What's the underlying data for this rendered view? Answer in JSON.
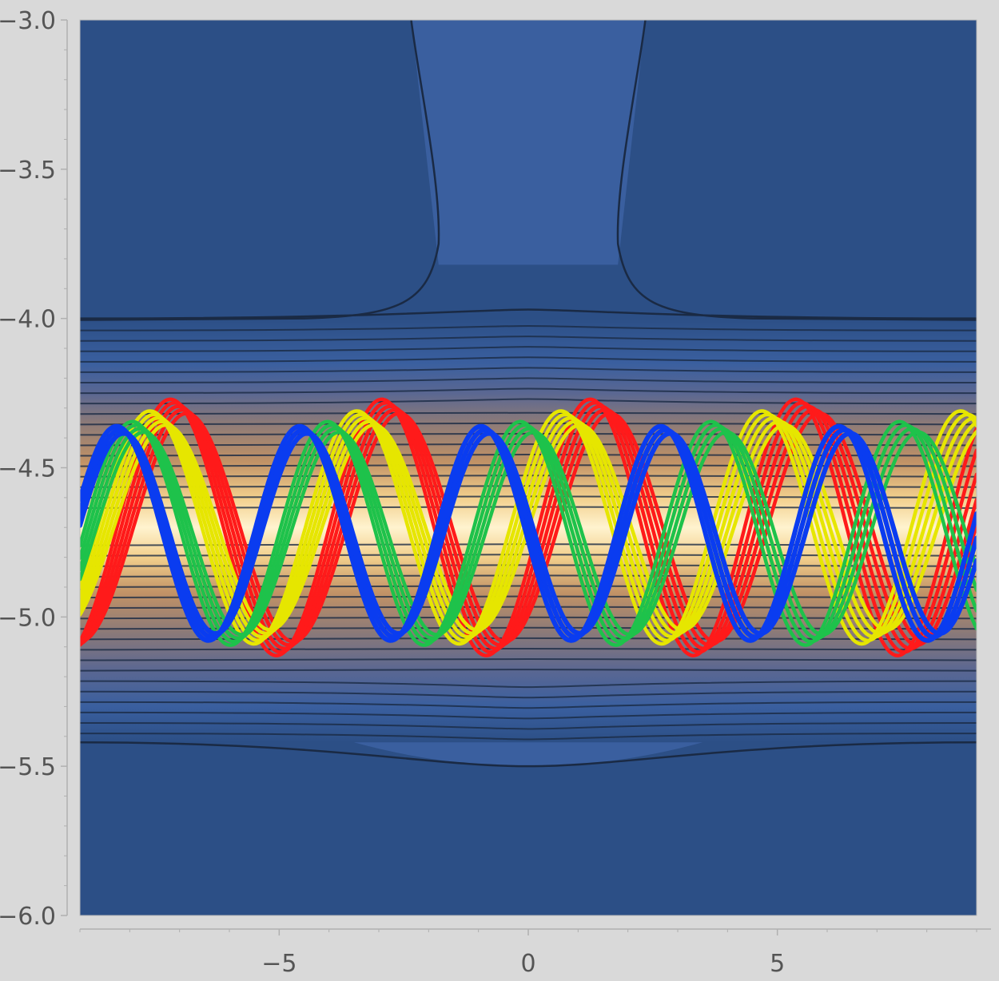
{
  "chart_data": {
    "type": "contour",
    "title": "",
    "xlabel": "",
    "ylabel": "",
    "xlim": [
      -9.0,
      9.0
    ],
    "ylim": [
      -6.0,
      -3.0
    ],
    "x_ticks": [
      {
        "value": -5,
        "label": "−5"
      },
      {
        "value": 0,
        "label": "0"
      },
      {
        "value": 5,
        "label": "5"
      }
    ],
    "y_ticks": [
      {
        "value": -3.0,
        "label": "−3.0"
      },
      {
        "value": -3.5,
        "label": "−3.5"
      },
      {
        "value": -4.0,
        "label": "−4.0"
      },
      {
        "value": -4.5,
        "label": "−4.5"
      },
      {
        "value": -5.0,
        "label": "−5.0"
      },
      {
        "value": -5.5,
        "label": "−5.5"
      },
      {
        "value": -6.0,
        "label": "−6.0"
      }
    ],
    "grid": false,
    "legend": "none",
    "background_contour": {
      "colormap": [
        "#2c4f86",
        "#3a5f9f",
        "#5a6792",
        "#8c7a78",
        "#c19266",
        "#f2cf8c",
        "#fff3cf"
      ],
      "band_center_y": -4.7,
      "ridge_x_range": [
        -3.2,
        3.2
      ],
      "contour_line_color": "#1a2a44"
    },
    "series": [
      {
        "color": "#ff1a1a",
        "amplitude": 0.42,
        "center": -4.7,
        "period": 4.3,
        "lanes": 5
      },
      {
        "color": "#e6e600",
        "amplitude": 0.38,
        "center": -4.7,
        "period": 4.2,
        "lanes": 5
      },
      {
        "color": "#1ec24b",
        "amplitude": 0.37,
        "center": -4.72,
        "period": 3.95,
        "lanes": 4
      },
      {
        "color": "#0a3cf0",
        "amplitude": 0.36,
        "center": -4.72,
        "period": 3.7,
        "lanes": 3
      }
    ]
  }
}
